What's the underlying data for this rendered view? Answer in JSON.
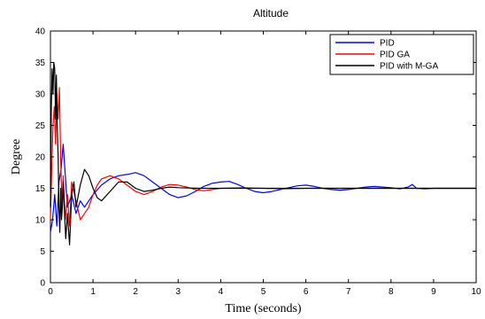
{
  "chart_data": {
    "type": "line",
    "title": "Altitude",
    "xlabel": "Time (seconds)",
    "ylabel": "Degree",
    "xlim": [
      0,
      10
    ],
    "ylim": [
      0,
      40
    ],
    "xticks": [
      "0",
      "1",
      "2",
      "3",
      "4",
      "5",
      "6",
      "7",
      "8",
      "9",
      "10"
    ],
    "yticks": [
      "0",
      "5",
      "10",
      "15",
      "20",
      "25",
      "30",
      "35",
      "40"
    ],
    "grid": false,
    "legend_position": "top-right",
    "series": [
      {
        "name": "PID",
        "color": "#0000ff",
        "x": [
          0,
          0.05,
          0.1,
          0.15,
          0.2,
          0.25,
          0.3,
          0.35,
          0.4,
          0.5,
          0.6,
          0.7,
          0.8,
          0.9,
          1.0,
          1.2,
          1.4,
          1.6,
          1.8,
          2.0,
          2.2,
          2.4,
          2.6,
          2.8,
          3.0,
          3.2,
          3.4,
          3.6,
          3.8,
          4.0,
          4.2,
          4.4,
          4.6,
          4.8,
          5.0,
          5.2,
          5.4,
          5.6,
          5.8,
          6.0,
          6.2,
          6.4,
          6.6,
          6.8,
          7.0,
          7.2,
          7.4,
          7.6,
          7.8,
          8.0,
          8.2,
          8.4,
          8.5,
          8.6,
          8.8,
          9.0,
          9.5,
          10.0
        ],
        "y": [
          8,
          10,
          14,
          9,
          16,
          18,
          22,
          17,
          12,
          14,
          11,
          13,
          12,
          13,
          14,
          15.5,
          16.5,
          17,
          17.2,
          17.5,
          17,
          16,
          15,
          14,
          13.5,
          13.8,
          14.5,
          15.3,
          15.8,
          16,
          16.1,
          15.6,
          15,
          14.5,
          14.3,
          14.5,
          14.8,
          15.1,
          15.4,
          15.5,
          15.3,
          15,
          14.8,
          14.7,
          14.8,
          15,
          15.2,
          15.3,
          15.2,
          15.1,
          14.9,
          15.2,
          15.6,
          15,
          14.9,
          15,
          15,
          15
        ]
      },
      {
        "name": "PID GA",
        "color": "#ff0000",
        "x": [
          0,
          0.03,
          0.06,
          0.09,
          0.12,
          0.15,
          0.18,
          0.21,
          0.24,
          0.27,
          0.3,
          0.35,
          0.4,
          0.45,
          0.5,
          0.6,
          0.7,
          0.8,
          0.9,
          1.0,
          1.1,
          1.2,
          1.4,
          1.6,
          1.8,
          2.0,
          2.2,
          2.4,
          2.6,
          2.8,
          3.0,
          3.2,
          3.4,
          3.6,
          3.8,
          4.0,
          4.5,
          5.0,
          5.5,
          6.0,
          7.0,
          8.0,
          9.0,
          10.0
        ],
        "y": [
          10,
          18,
          25,
          28,
          22,
          30,
          26,
          31,
          20,
          12,
          17,
          10,
          14,
          9,
          16,
          13,
          10,
          11,
          12,
          14,
          15.5,
          16.5,
          17,
          16.5,
          15.5,
          14.5,
          14,
          14.5,
          15.2,
          15.6,
          15.5,
          15.2,
          14.8,
          14.6,
          14.8,
          15,
          15.1,
          15,
          14.9,
          15,
          15,
          15,
          15,
          15
        ]
      },
      {
        "name": "PID with M-GA",
        "color": "#000000",
        "x": [
          0,
          0.02,
          0.04,
          0.06,
          0.08,
          0.1,
          0.12,
          0.14,
          0.16,
          0.18,
          0.2,
          0.22,
          0.24,
          0.26,
          0.28,
          0.3,
          0.33,
          0.36,
          0.4,
          0.45,
          0.5,
          0.55,
          0.6,
          0.7,
          0.8,
          0.9,
          1.0,
          1.1,
          1.2,
          1.4,
          1.6,
          1.8,
          2.0,
          2.2,
          2.4,
          2.6,
          2.8,
          3.0,
          3.5,
          4.0,
          5.0,
          6.0,
          7.0,
          8.0,
          9.0,
          10.0
        ],
        "y": [
          12,
          28,
          34,
          30,
          35,
          34,
          26,
          33,
          25,
          20,
          12,
          8,
          15,
          10,
          12,
          16,
          11,
          7,
          11,
          6,
          14,
          16,
          12,
          15.5,
          18,
          17,
          15,
          13.5,
          13,
          14.5,
          16,
          16,
          15,
          14.5,
          14.7,
          15,
          15.2,
          15.1,
          15,
          15,
          15,
          15,
          15,
          15,
          15,
          15
        ]
      }
    ]
  }
}
